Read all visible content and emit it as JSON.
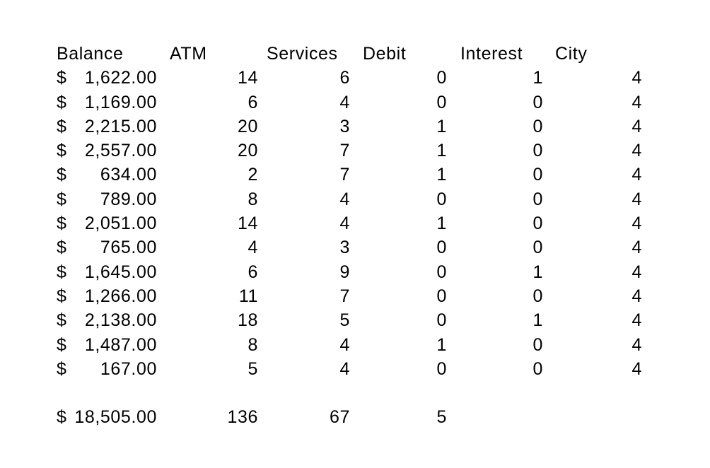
{
  "page": {
    "background": "#ffffff",
    "text_color": "#000000"
  },
  "table": {
    "currency_symbol": "$",
    "columns": [
      {
        "key": "balance",
        "label": "Balance"
      },
      {
        "key": "atm",
        "label": "ATM"
      },
      {
        "key": "services",
        "label": "Services"
      },
      {
        "key": "debit",
        "label": "Debit"
      },
      {
        "key": "interest",
        "label": "Interest"
      },
      {
        "key": "city",
        "label": "City"
      }
    ],
    "rows": [
      {
        "balance": "1,622.00",
        "atm": "14",
        "services": "6",
        "debit": "0",
        "interest": "1",
        "city": "4"
      },
      {
        "balance": "1,169.00",
        "atm": "6",
        "services": "4",
        "debit": "0",
        "interest": "0",
        "city": "4"
      },
      {
        "balance": "2,215.00",
        "atm": "20",
        "services": "3",
        "debit": "1",
        "interest": "0",
        "city": "4"
      },
      {
        "balance": "2,557.00",
        "atm": "20",
        "services": "7",
        "debit": "1",
        "interest": "0",
        "city": "4"
      },
      {
        "balance": "634.00",
        "atm": "2",
        "services": "7",
        "debit": "1",
        "interest": "0",
        "city": "4"
      },
      {
        "balance": "789.00",
        "atm": "8",
        "services": "4",
        "debit": "0",
        "interest": "0",
        "city": "4"
      },
      {
        "balance": "2,051.00",
        "atm": "14",
        "services": "4",
        "debit": "1",
        "interest": "0",
        "city": "4"
      },
      {
        "balance": "765.00",
        "atm": "4",
        "services": "3",
        "debit": "0",
        "interest": "0",
        "city": "4"
      },
      {
        "balance": "1,645.00",
        "atm": "6",
        "services": "9",
        "debit": "0",
        "interest": "1",
        "city": "4"
      },
      {
        "balance": "1,266.00",
        "atm": "11",
        "services": "7",
        "debit": "0",
        "interest": "0",
        "city": "4"
      },
      {
        "balance": "2,138.00",
        "atm": "18",
        "services": "5",
        "debit": "0",
        "interest": "1",
        "city": "4"
      },
      {
        "balance": "1,487.00",
        "atm": "8",
        "services": "4",
        "debit": "1",
        "interest": "0",
        "city": "4"
      },
      {
        "balance": "167.00",
        "atm": "5",
        "services": "4",
        "debit": "0",
        "interest": "0",
        "city": "4"
      }
    ],
    "totals": {
      "balance": "18,505.00",
      "atm": "136",
      "services": "67",
      "debit": "5",
      "interest": "",
      "city": ""
    }
  }
}
